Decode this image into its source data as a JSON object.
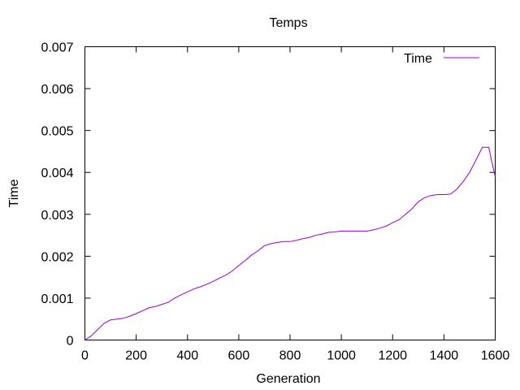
{
  "chart_data": {
    "type": "line",
    "title": "Temps",
    "xlabel": "Generation",
    "ylabel": "Time",
    "xlim": [
      0,
      1600
    ],
    "ylim": [
      0,
      0.007
    ],
    "x_ticks": [
      "0",
      "200",
      "400",
      "600",
      "800",
      "1000",
      "1200",
      "1400",
      "1600"
    ],
    "y_ticks": [
      "0",
      "0.001",
      "0.002",
      "0.003",
      "0.004",
      "0.005",
      "0.006",
      "0.007"
    ],
    "grid": false,
    "legend_position": "top-right",
    "series": [
      {
        "name": "Time",
        "color": "#9400d3",
        "x": [
          0,
          25,
          50,
          75,
          100,
          125,
          150,
          175,
          200,
          225,
          250,
          275,
          300,
          325,
          350,
          375,
          400,
          425,
          450,
          475,
          500,
          525,
          550,
          575,
          600,
          625,
          650,
          675,
          700,
          725,
          750,
          775,
          800,
          825,
          850,
          875,
          900,
          925,
          950,
          975,
          1000,
          1025,
          1050,
          1075,
          1100,
          1125,
          1150,
          1175,
          1200,
          1225,
          1250,
          1275,
          1300,
          1325,
          1350,
          1375,
          1400,
          1425,
          1450,
          1475,
          1500,
          1525,
          1550,
          1565,
          1575,
          1585,
          1600
        ],
        "values": [
          0,
          0.0001,
          0.00025,
          0.0004,
          0.00048,
          0.0005,
          0.00052,
          0.00057,
          0.00063,
          0.0007,
          0.00077,
          0.0008,
          0.00085,
          0.0009,
          0.001,
          0.00108,
          0.00115,
          0.00122,
          0.00127,
          0.00133,
          0.0014,
          0.00148,
          0.00155,
          0.00165,
          0.00178,
          0.0019,
          0.00203,
          0.00213,
          0.00225,
          0.0023,
          0.00233,
          0.00235,
          0.00235,
          0.00238,
          0.00242,
          0.00245,
          0.0025,
          0.00253,
          0.00257,
          0.00258,
          0.0026,
          0.0026,
          0.0026,
          0.0026,
          0.0026,
          0.00263,
          0.00267,
          0.00272,
          0.0028,
          0.00287,
          0.003,
          0.00313,
          0.0033,
          0.0034,
          0.00345,
          0.00347,
          0.00347,
          0.00348,
          0.0036,
          0.00378,
          0.004,
          0.0043,
          0.0046,
          0.0046,
          0.0046,
          0.0043,
          0.0039
        ]
      }
    ]
  }
}
